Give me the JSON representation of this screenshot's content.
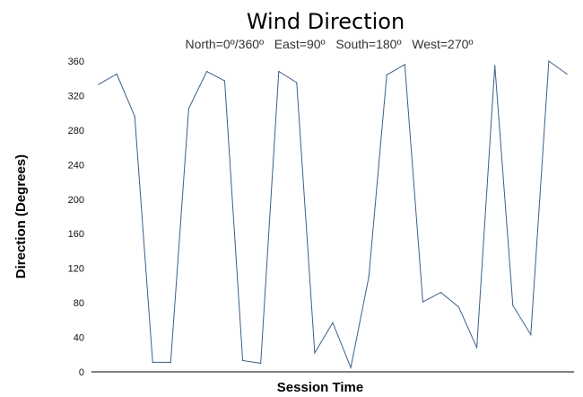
{
  "chart_data": {
    "type": "line",
    "title": "Wind Direction",
    "subtitle": "North=0º/360º   East=90º   South=180º   West=270º",
    "xlabel": "Session Time",
    "ylabel": "Direction (Degrees)",
    "ylim": [
      0,
      360
    ],
    "yticks": [
      "0",
      "40",
      "80",
      "120",
      "160",
      "200",
      "240",
      "280",
      "320",
      "360"
    ],
    "grid": false,
    "line_color": "#3b5f8a",
    "series": [
      {
        "values": [
          333,
          345,
          296,
          11,
          11,
          305,
          348,
          337,
          13,
          10,
          348,
          335,
          22,
          57,
          5,
          110,
          344,
          356,
          81,
          92,
          75,
          28,
          355,
          77,
          43,
          360,
          345
        ]
      }
    ]
  }
}
